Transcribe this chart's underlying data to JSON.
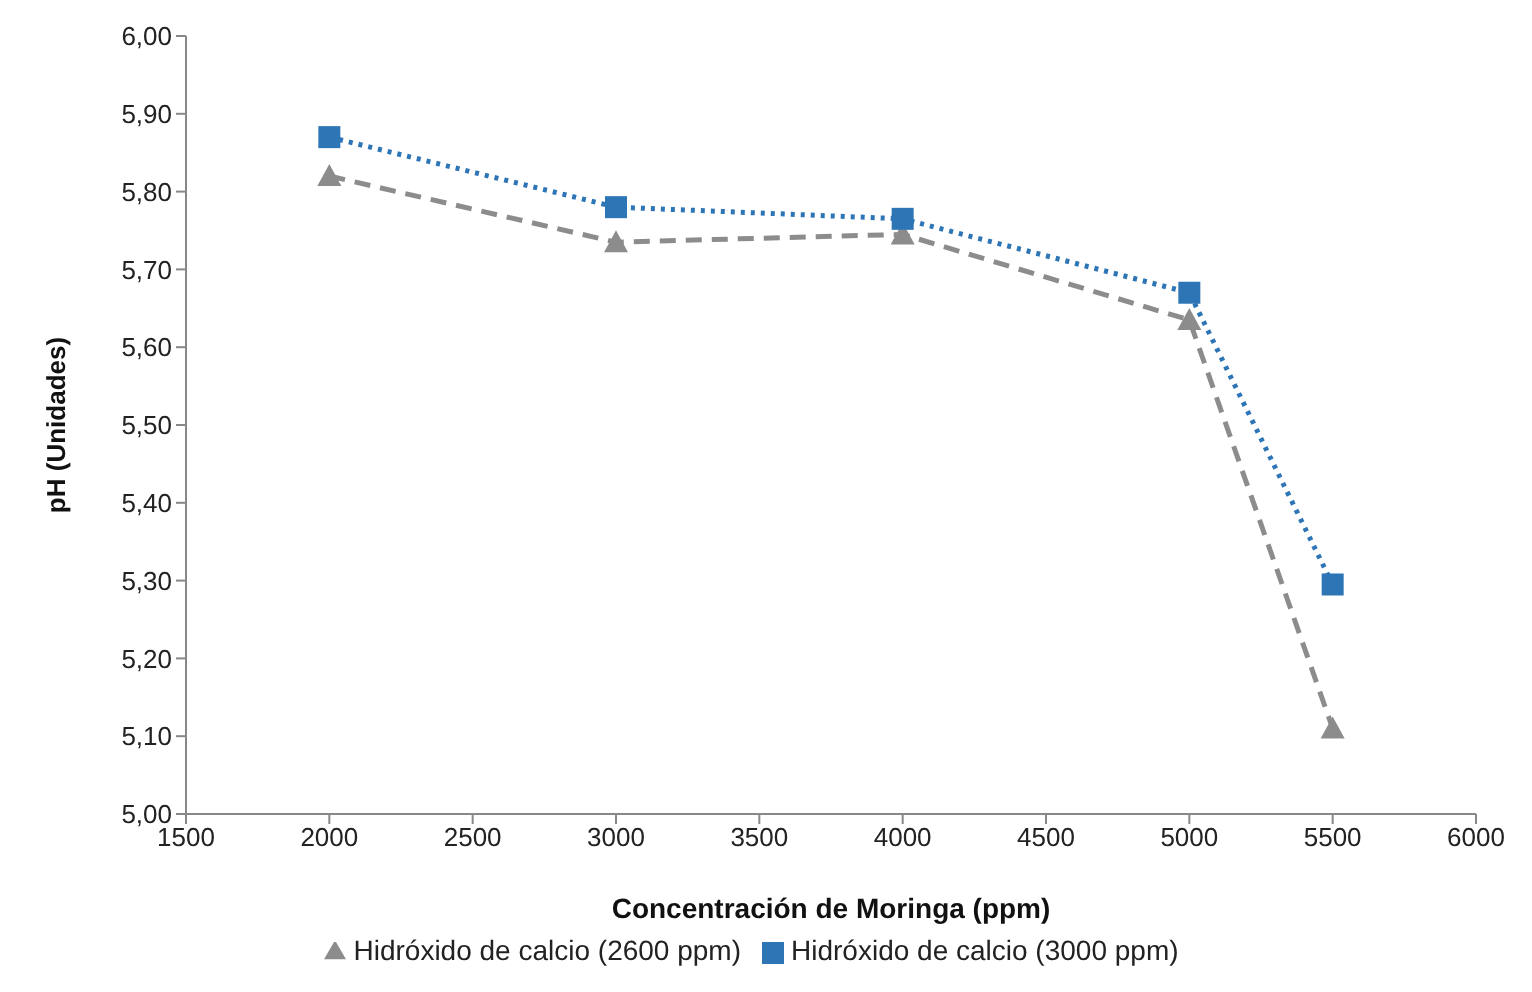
{
  "chart_data": {
    "type": "line",
    "xlabel": "Concentración  de Moringa (ppm)",
    "ylabel": "pH (Unidades)",
    "x": [
      2000,
      3000,
      4000,
      5000,
      5500
    ],
    "series": [
      {
        "name": "Hidróxido de calcio (2600 ppm)",
        "color": "#8c8c8c",
        "values": [
          5.82,
          5.735,
          5.745,
          5.635,
          5.11
        ],
        "marker": "triangle",
        "line_style": "dashed"
      },
      {
        "name": "Hidróxido de calcio (3000 ppm)",
        "color": "#2e75b6",
        "values": [
          5.87,
          5.78,
          5.765,
          5.67,
          5.295
        ],
        "marker": "square",
        "line_style": "dotted"
      }
    ],
    "xlim": [
      1500,
      6000
    ],
    "xticks": [
      1500,
      2000,
      2500,
      3000,
      3500,
      4000,
      4500,
      5000,
      5500,
      6000
    ],
    "ylim": [
      5.0,
      6.0
    ],
    "yticks": [
      {
        "value": 5.0,
        "label": "5,00"
      },
      {
        "value": 5.1,
        "label": "5,10"
      },
      {
        "value": 5.2,
        "label": "5,20"
      },
      {
        "value": 5.3,
        "label": "5,30"
      },
      {
        "value": 5.4,
        "label": "5,40"
      },
      {
        "value": 5.5,
        "label": "5,50"
      },
      {
        "value": 5.6,
        "label": "5,60"
      },
      {
        "value": 5.7,
        "label": "5,70"
      },
      {
        "value": 5.8,
        "label": "5,80"
      },
      {
        "value": 5.9,
        "label": "5,90"
      },
      {
        "value": 6.0,
        "label": "6,00"
      }
    ],
    "legend": "bottom"
  }
}
